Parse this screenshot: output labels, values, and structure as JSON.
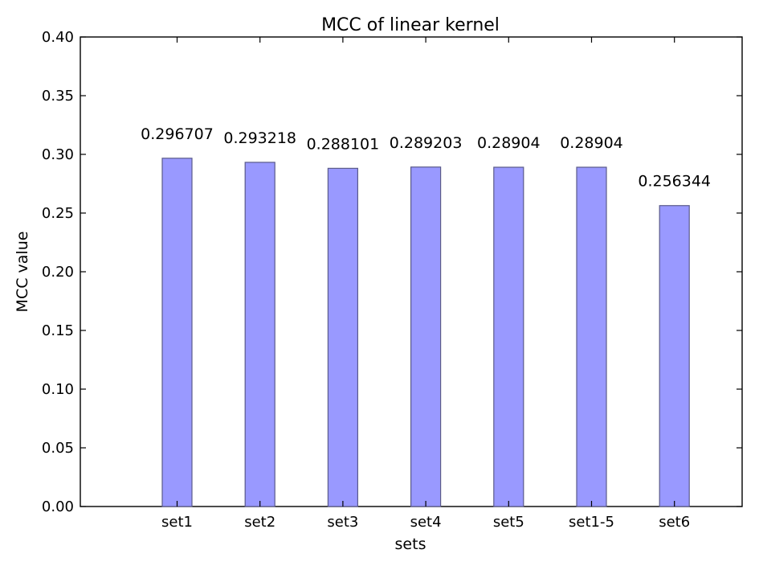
{
  "chart_data": {
    "type": "bar",
    "title": "MCC of linear kernel",
    "xlabel": "sets",
    "ylabel": "MCC value",
    "categories": [
      "set1",
      "set2",
      "set3",
      "set4",
      "set5",
      "set1-5",
      "set6"
    ],
    "values": [
      0.296707,
      0.293218,
      0.288101,
      0.289203,
      0.28904,
      0.28904,
      0.256344
    ],
    "value_labels": [
      "0.296707",
      "0.293218",
      "0.288101",
      "0.289203",
      "0.28904",
      "0.28904",
      "0.256344"
    ],
    "ylim": [
      0.0,
      0.4
    ],
    "yticks": [
      "0.00",
      "0.05",
      "0.10",
      "0.15",
      "0.20",
      "0.25",
      "0.30",
      "0.35",
      "0.40"
    ],
    "grid": false,
    "bar_color": "#9999ff",
    "bar_edge_color": "#5a5a8a"
  }
}
